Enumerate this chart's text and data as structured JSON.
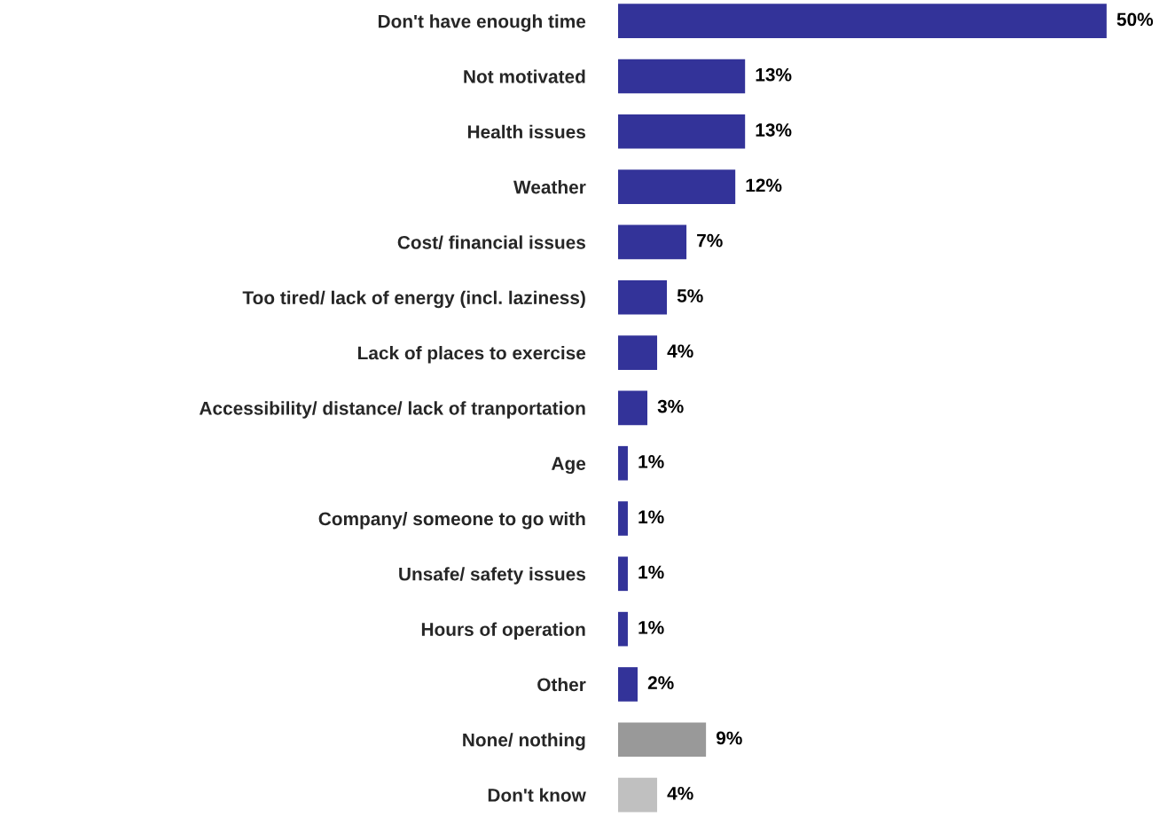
{
  "chart_data": {
    "type": "bar",
    "orientation": "horizontal",
    "categories": [
      "Don't have enough time",
      "Not motivated",
      "Health issues",
      "Weather",
      "Cost/ financial issues",
      "Too tired/ lack of energy (incl. laziness)",
      "Lack of places to exercise",
      "Accessibility/ distance/ lack of tranportation",
      "Age",
      "Company/ someone to go with",
      "Unsafe/ safety issues",
      "Hours of operation",
      "Other",
      "None/ nothing",
      "Don't know"
    ],
    "values": [
      50,
      13,
      13,
      12,
      7,
      5,
      4,
      3,
      1,
      1,
      1,
      1,
      2,
      9,
      4
    ],
    "colors": [
      "#333399",
      "#333399",
      "#333399",
      "#333399",
      "#333399",
      "#333399",
      "#333399",
      "#333399",
      "#333399",
      "#333399",
      "#333399",
      "#333399",
      "#333399",
      "#999999",
      "#c0c0c0"
    ],
    "value_labels": [
      "50%",
      "13%",
      "13%",
      "12%",
      "7%",
      "5%",
      "4%",
      "3%",
      "1%",
      "1%",
      "1%",
      "1%",
      "2%",
      "9%",
      "4%"
    ],
    "grid": false,
    "legend": false
  }
}
